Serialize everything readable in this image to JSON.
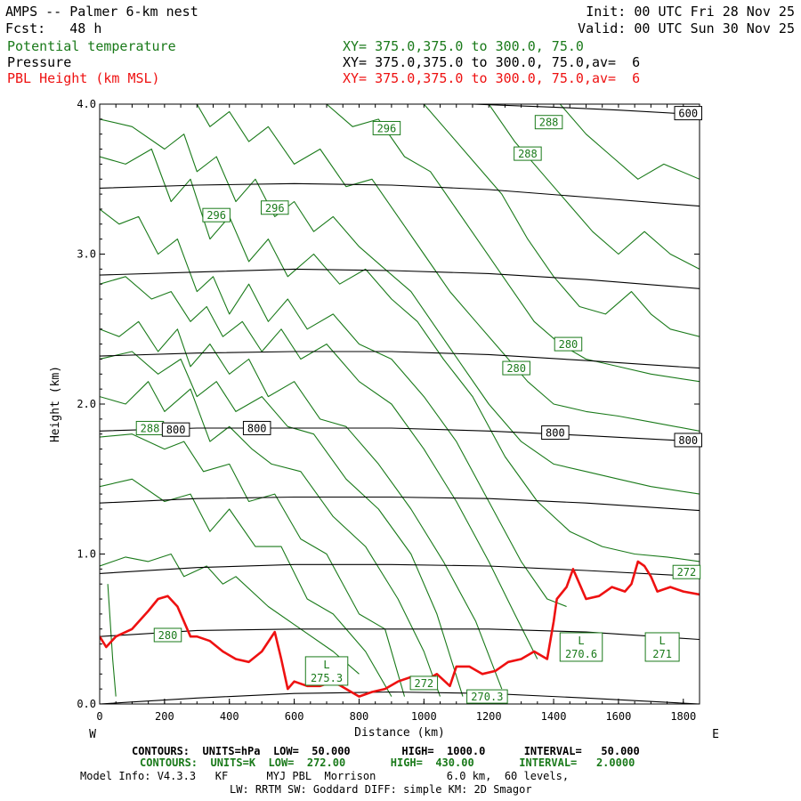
{
  "header": {
    "title": "AMPS -- Palmer 6-km nest",
    "init": "Init: 00 UTC Fri 28 Nov 25",
    "fcst": "Fcst:   48 h",
    "valid": "Valid: 00 UTC Sun 30 Nov 25",
    "field1": "Potential temperature",
    "field2": "Pressure",
    "field3": "PBL Height (km MSL)",
    "xy1": "XY= 375.0,375.0 to 300.0, 75.0",
    "xy2": "XY= 375.0,375.0 to 300.0, 75.0,av=  6",
    "xy3": "XY= 375.0,375.0 to 300.0, 75.0,av=  6"
  },
  "colors": {
    "theta": "#1a7a1a",
    "pressure": "#000000",
    "pbl": "#ee1111"
  },
  "footer": {
    "pressure_contours": "CONTOURS:  UNITS=hPa  LOW=  50.000        HIGH=  1000.0      INTERVAL=   50.000",
    "theta_contours": "CONTOURS:  UNITS=K  LOW=  272.00       HIGH=  430.00       INTERVAL=   2.0000",
    "model_info": "Model Info: V4.3.3   KF      MYJ PBL  Morrison           6.0 km,  60 levels,",
    "model_info2": "LW: RRTM SW: Goddard DIFF: simple KM: 2D Smagor"
  },
  "chart_data": {
    "type": "line",
    "title": "AMPS -- Palmer 6-km nest",
    "xlabel": "Distance (km)",
    "ylabel": "Height (km)",
    "xlim": [
      0,
      1850
    ],
    "ylim": [
      0,
      4.0
    ],
    "xticks": [
      0,
      200,
      400,
      600,
      800,
      1000,
      1200,
      1400,
      1600,
      1800
    ],
    "yticks": [
      0.0,
      1.0,
      2.0,
      3.0,
      4.0
    ],
    "xtick_labels": [
      "0",
      "200",
      "400",
      "600",
      "800",
      "1000",
      "1200",
      "1400",
      "1600",
      "1800"
    ],
    "ytick_labels": [
      "0.0",
      "1.0",
      "2.0",
      "3.0",
      "4.0"
    ],
    "left_end_label": "W",
    "right_end_label": "E",
    "pressure_isobars": [
      {
        "name": "pressure level",
        "x": [
          0,
          300,
          600,
          900,
          1200,
          1500,
          1850
        ],
        "y": [
          0.0,
          0.04,
          0.07,
          0.08,
          0.07,
          0.04,
          0.0
        ]
      },
      {
        "name": "pressure level",
        "x": [
          0,
          300,
          600,
          900,
          1200,
          1500,
          1850
        ],
        "y": [
          0.45,
          0.49,
          0.5,
          0.5,
          0.5,
          0.48,
          0.43
        ]
      },
      {
        "name": "pressure level",
        "x": [
          0,
          300,
          600,
          900,
          1200,
          1500,
          1850
        ],
        "y": [
          0.87,
          0.91,
          0.93,
          0.93,
          0.92,
          0.89,
          0.85
        ]
      },
      {
        "name": "pressure level",
        "x": [
          0,
          300,
          600,
          900,
          1200,
          1500,
          1850
        ],
        "y": [
          1.34,
          1.37,
          1.38,
          1.38,
          1.37,
          1.34,
          1.29
        ]
      },
      {
        "name": "800",
        "x": [
          0,
          300,
          600,
          900,
          1200,
          1500,
          1850
        ],
        "y": [
          1.82,
          1.84,
          1.84,
          1.84,
          1.82,
          1.79,
          1.75
        ]
      },
      {
        "name": "pressure level",
        "x": [
          0,
          300,
          600,
          900,
          1200,
          1500,
          1850
        ],
        "y": [
          2.32,
          2.34,
          2.35,
          2.35,
          2.33,
          2.29,
          2.24
        ]
      },
      {
        "name": "pressure level",
        "x": [
          0,
          300,
          600,
          900,
          1200,
          1500,
          1850
        ],
        "y": [
          2.86,
          2.88,
          2.9,
          2.89,
          2.87,
          2.83,
          2.77
        ]
      },
      {
        "name": "pressure level",
        "x": [
          0,
          300,
          600,
          900,
          1200,
          1500,
          1850
        ],
        "y": [
          3.44,
          3.46,
          3.47,
          3.46,
          3.43,
          3.38,
          3.32
        ]
      },
      {
        "name": "600",
        "x": [
          1150,
          1400,
          1600,
          1850
        ],
        "y": [
          4.0,
          3.98,
          3.96,
          3.93
        ]
      }
    ],
    "isobar_labels": [
      {
        "text": "800",
        "x": 235,
        "y": 1.83
      },
      {
        "text": "800",
        "x": 485,
        "y": 1.84
      },
      {
        "text": "800",
        "x": 1405,
        "y": 1.81
      },
      {
        "text": "800",
        "x": 1815,
        "y": 1.76
      },
      {
        "text": "600",
        "x": 1815,
        "y": 3.94
      }
    ],
    "theta_labels": [
      {
        "text": "296",
        "x": 885,
        "y": 3.84
      },
      {
        "text": "288",
        "x": 1385,
        "y": 3.88
      },
      {
        "text": "288",
        "x": 1320,
        "y": 3.67
      },
      {
        "text": "296",
        "x": 360,
        "y": 3.26
      },
      {
        "text": "296",
        "x": 540,
        "y": 3.31
      },
      {
        "text": "280",
        "x": 1445,
        "y": 2.4
      },
      {
        "text": "280",
        "x": 1285,
        "y": 2.24
      },
      {
        "text": "288",
        "x": 155,
        "y": 1.84
      },
      {
        "text": "272",
        "x": 1810,
        "y": 0.88
      },
      {
        "text": "280",
        "x": 210,
        "y": 0.46
      },
      {
        "text": "272",
        "x": 1000,
        "y": 0.14
      },
      {
        "text": "270.3",
        "x": 1195,
        "y": 0.05
      }
    ],
    "theta_minima": [
      {
        "text": "L",
        "value": "275.3",
        "x": 700,
        "y": 0.22
      },
      {
        "text": "L",
        "value": "270.6",
        "x": 1485,
        "y": 0.38
      },
      {
        "text": "L",
        "value": "271",
        "x": 1735,
        "y": 0.38
      }
    ],
    "theta_contours": [
      {
        "name": "theta",
        "x": [
          25,
          40,
          50
        ],
        "y": [
          0.8,
          0.3,
          0.05
        ]
      },
      {
        "name": "theta",
        "x": [
          0,
          80,
          150,
          220,
          260,
          330,
          380,
          420,
          520,
          620,
          720,
          800
        ],
        "y": [
          0.92,
          0.98,
          0.95,
          1.0,
          0.85,
          0.92,
          0.8,
          0.85,
          0.65,
          0.5,
          0.35,
          0.2
        ]
      },
      {
        "name": "theta",
        "x": [
          0,
          100,
          200,
          280,
          340,
          400,
          480,
          560,
          640,
          720,
          820,
          900
        ],
        "y": [
          1.45,
          1.5,
          1.35,
          1.4,
          1.15,
          1.3,
          1.05,
          1.05,
          0.7,
          0.6,
          0.35,
          0.05
        ]
      },
      {
        "name": "theta",
        "x": [
          0,
          100,
          200,
          260,
          320,
          400,
          460,
          540,
          620,
          700,
          800,
          880,
          940
        ],
        "y": [
          1.78,
          1.8,
          1.7,
          1.75,
          1.55,
          1.6,
          1.35,
          1.4,
          1.1,
          1.0,
          0.6,
          0.5,
          0.05
        ]
      },
      {
        "name": "theta",
        "x": [
          0,
          80,
          150,
          200,
          280,
          340,
          400,
          470,
          530,
          620,
          720,
          820,
          920,
          1000,
          1050
        ],
        "y": [
          2.05,
          2.0,
          2.15,
          1.95,
          2.1,
          1.75,
          1.85,
          1.7,
          1.6,
          1.55,
          1.25,
          1.05,
          0.7,
          0.35,
          0.05
        ]
      },
      {
        "name": "theta",
        "x": [
          0,
          100,
          180,
          250,
          300,
          360,
          420,
          500,
          580,
          660,
          760,
          860,
          960,
          1040,
          1120
        ],
        "y": [
          2.3,
          2.35,
          2.2,
          2.3,
          2.05,
          2.15,
          1.95,
          2.05,
          1.85,
          1.8,
          1.5,
          1.3,
          1.0,
          0.6,
          0.05
        ]
      },
      {
        "name": "theta",
        "x": [
          0,
          60,
          120,
          180,
          240,
          280,
          340,
          400,
          460,
          520,
          600,
          680,
          760,
          860,
          960,
          1060,
          1160,
          1240
        ],
        "y": [
          2.5,
          2.45,
          2.55,
          2.35,
          2.5,
          2.25,
          2.4,
          2.2,
          2.3,
          2.05,
          2.15,
          1.9,
          1.85,
          1.6,
          1.3,
          0.95,
          0.55,
          0.1
        ]
      },
      {
        "name": "theta",
        "x": [
          0,
          80,
          160,
          220,
          280,
          330,
          380,
          440,
          500,
          560,
          620,
          700,
          800,
          900,
          1000,
          1100,
          1200,
          1280,
          1350
        ],
        "y": [
          2.8,
          2.85,
          2.7,
          2.75,
          2.55,
          2.65,
          2.45,
          2.55,
          2.35,
          2.5,
          2.3,
          2.4,
          2.15,
          2.0,
          1.7,
          1.35,
          0.95,
          0.6,
          0.3
        ]
      },
      {
        "name": "theta",
        "x": [
          0,
          60,
          120,
          180,
          240,
          300,
          350,
          400,
          460,
          520,
          580,
          640,
          720,
          800,
          900,
          1000,
          1100,
          1200,
          1300,
          1380,
          1440
        ],
        "y": [
          3.3,
          3.2,
          3.25,
          3.0,
          3.1,
          2.75,
          2.85,
          2.6,
          2.8,
          2.55,
          2.7,
          2.5,
          2.6,
          2.4,
          2.3,
          2.05,
          1.75,
          1.35,
          0.95,
          0.7,
          0.65
        ]
      },
      {
        "name": "theta",
        "x": [
          0,
          80,
          160,
          220,
          280,
          340,
          400,
          460,
          520,
          580,
          660,
          740,
          820,
          900,
          980,
          1060,
          1150,
          1250,
          1350,
          1450,
          1550,
          1650,
          1750,
          1850
        ],
        "y": [
          3.65,
          3.6,
          3.7,
          3.35,
          3.5,
          3.1,
          3.25,
          2.95,
          3.1,
          2.85,
          3.0,
          2.8,
          2.9,
          2.7,
          2.55,
          2.3,
          2.05,
          1.65,
          1.35,
          1.15,
          1.05,
          1.0,
          0.98,
          0.95
        ]
      },
      {
        "name": "theta",
        "x": [
          0,
          100,
          200,
          260,
          300,
          360,
          420,
          480,
          540,
          600,
          660,
          720,
          800,
          880,
          960,
          1040,
          1120,
          1200,
          1300,
          1400,
          1500,
          1600,
          1700,
          1850
        ],
        "y": [
          3.9,
          3.85,
          3.7,
          3.8,
          3.55,
          3.65,
          3.35,
          3.5,
          3.25,
          3.35,
          3.15,
          3.25,
          3.05,
          2.9,
          2.75,
          2.5,
          2.25,
          2.0,
          1.75,
          1.6,
          1.55,
          1.5,
          1.45,
          1.4
        ]
      },
      {
        "name": "theta",
        "x": [
          300,
          340,
          400,
          460,
          520,
          600,
          680,
          760,
          840,
          920,
          1000,
          1080,
          1160,
          1240,
          1320,
          1400,
          1500,
          1600,
          1700,
          1850
        ],
        "y": [
          4.0,
          3.85,
          3.95,
          3.75,
          3.85,
          3.6,
          3.7,
          3.45,
          3.5,
          3.25,
          3.0,
          2.75,
          2.55,
          2.35,
          2.15,
          2.0,
          1.95,
          1.92,
          1.88,
          1.82
        ]
      },
      {
        "name": "theta",
        "x": [
          700,
          780,
          860,
          940,
          1020,
          1100,
          1180,
          1260,
          1340,
          1420,
          1500,
          1600,
          1700,
          1850
        ],
        "y": [
          4.0,
          3.85,
          3.9,
          3.65,
          3.55,
          3.3,
          3.05,
          2.8,
          2.55,
          2.4,
          2.3,
          2.25,
          2.2,
          2.15
        ]
      },
      {
        "name": "theta",
        "x": [
          1000,
          1080,
          1160,
          1240,
          1320,
          1400,
          1480,
          1560,
          1640,
          1700,
          1760,
          1850
        ],
        "y": [
          4.0,
          3.8,
          3.6,
          3.4,
          3.1,
          2.85,
          2.65,
          2.6,
          2.75,
          2.6,
          2.5,
          2.45
        ]
      },
      {
        "name": "theta",
        "x": [
          1200,
          1280,
          1360,
          1440,
          1520,
          1600,
          1680,
          1760,
          1850
        ],
        "y": [
          4.0,
          3.75,
          3.55,
          3.35,
          3.15,
          3.0,
          3.15,
          3.0,
          2.9
        ]
      },
      {
        "name": "theta",
        "x": [
          1420,
          1500,
          1580,
          1660,
          1740,
          1850
        ],
        "y": [
          4.0,
          3.8,
          3.65,
          3.5,
          3.6,
          3.5
        ]
      }
    ],
    "pbl_height": {
      "name": "PBL Height (km MSL)",
      "x": [
        0,
        20,
        50,
        100,
        150,
        180,
        210,
        240,
        260,
        280,
        300,
        340,
        380,
        420,
        460,
        500,
        540,
        560,
        580,
        600,
        640,
        680,
        720,
        760,
        800,
        840,
        880,
        920,
        960,
        1000,
        1040,
        1080,
        1100,
        1140,
        1180,
        1220,
        1260,
        1300,
        1340,
        1380,
        1400,
        1410,
        1440,
        1460,
        1480,
        1500,
        1540,
        1580,
        1620,
        1640,
        1660,
        1680,
        1700,
        1720,
        1760,
        1800,
        1850
      ],
      "y": [
        0.45,
        0.38,
        0.45,
        0.5,
        0.62,
        0.7,
        0.72,
        0.65,
        0.55,
        0.45,
        0.45,
        0.42,
        0.35,
        0.3,
        0.28,
        0.35,
        0.48,
        0.3,
        0.1,
        0.15,
        0.12,
        0.12,
        0.15,
        0.1,
        0.05,
        0.08,
        0.1,
        0.15,
        0.18,
        0.15,
        0.2,
        0.12,
        0.25,
        0.25,
        0.2,
        0.22,
        0.28,
        0.3,
        0.35,
        0.3,
        0.55,
        0.7,
        0.78,
        0.9,
        0.8,
        0.7,
        0.72,
        0.78,
        0.75,
        0.8,
        0.95,
        0.92,
        0.85,
        0.75,
        0.78,
        0.75,
        0.73
      ]
    }
  }
}
